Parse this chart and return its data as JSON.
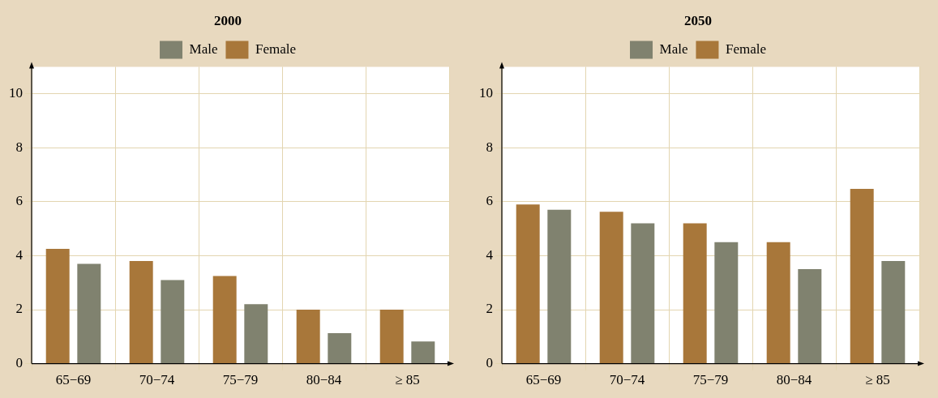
{
  "chart_data": [
    {
      "type": "bar",
      "title": "2000",
      "categories": [
        "65−69",
        "70−74",
        "75−79",
        "80−84",
        "≥ 85"
      ],
      "series": [
        {
          "name": "Female",
          "color": "#a8773a",
          "values": [
            4.25,
            3.8,
            3.25,
            2.0,
            2.0
          ]
        },
        {
          "name": "Male",
          "color": "#80826f",
          "values": [
            3.7,
            3.1,
            2.2,
            1.13,
            0.82
          ]
        }
      ],
      "ylim": [
        0,
        11
      ],
      "yticks": [
        0,
        2,
        4,
        6,
        8,
        10
      ],
      "grid": true,
      "legend": "top"
    },
    {
      "type": "bar",
      "title": "2050",
      "categories": [
        "65−69",
        "70−74",
        "75−79",
        "80−84",
        "≥ 85"
      ],
      "series": [
        {
          "name": "Female",
          "color": "#a8773a",
          "values": [
            5.9,
            5.63,
            5.2,
            4.5,
            6.48
          ]
        },
        {
          "name": "Male",
          "color": "#80826f",
          "values": [
            5.7,
            5.2,
            4.5,
            3.5,
            3.8
          ]
        }
      ],
      "ylim": [
        0,
        11
      ],
      "yticks": [
        0,
        2,
        4,
        6,
        8,
        10
      ],
      "grid": true,
      "legend": "top"
    }
  ]
}
